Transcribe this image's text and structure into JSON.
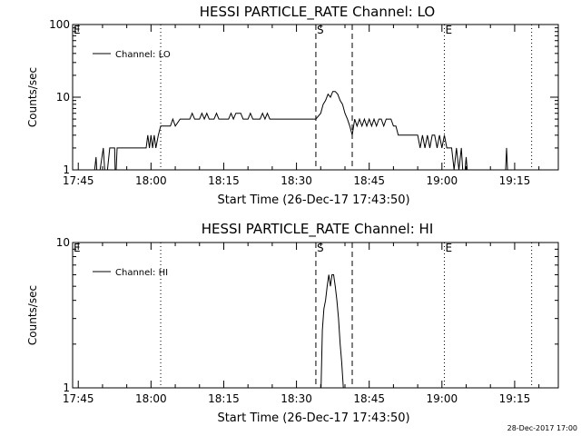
{
  "footer_stamp": "28-Dec-2017 17:00",
  "chart_data": [
    {
      "type": "line",
      "title": "HESSI PARTICLE_RATE Channel: LO",
      "xlabel": "Start Time (26-Dec-17 17:43:50)",
      "ylabel": "Counts/sec",
      "yscale": "log",
      "ylim": [
        1,
        100
      ],
      "xlim": [
        "17:43:50",
        "19:24:00"
      ],
      "x_ticks": [
        "17:45",
        "18:00",
        "18:15",
        "18:30",
        "18:45",
        "19:00",
        "19:15"
      ],
      "y_ticks": [
        {
          "value": 1,
          "label": "1"
        },
        {
          "value": 10,
          "label": "10"
        },
        {
          "value": 100,
          "label": "100"
        }
      ],
      "legend": {
        "position": "top-left",
        "entries": [
          "Channel: LO"
        ]
      },
      "markers": [
        {
          "time": "18:02:00",
          "style": "dotted",
          "label": ""
        },
        {
          "time": "18:34:00",
          "style": "dashed",
          "label": "S"
        },
        {
          "time": "18:41:30",
          "style": "dashed",
          "label": ""
        },
        {
          "time": "19:00:30",
          "style": "dotted",
          "label": "E"
        },
        {
          "time": "19:18:30",
          "style": "dotted",
          "label": ""
        }
      ],
      "edge_labels": [
        {
          "time": "17:43:50",
          "label": "E"
        }
      ],
      "series": [
        {
          "values": [
            [
              "17:48:00",
              0.6
            ],
            [
              "17:48:40",
              1.5
            ],
            [
              "17:49:00",
              0.6
            ],
            [
              "17:50:10",
              2.0
            ],
            [
              "17:50:40",
              0.6
            ],
            [
              "17:51:30",
              2.0
            ],
            [
              "17:52:30",
              2.0
            ],
            [
              "17:52:40",
              0.6
            ],
            [
              "17:53:00",
              2.0
            ],
            [
              "17:59:00",
              2.0
            ],
            [
              "17:59:20",
              3.0
            ],
            [
              "17:59:40",
              2.0
            ],
            [
              "18:00:00",
              3.0
            ],
            [
              "18:00:20",
              2.0
            ],
            [
              "18:00:40",
              3.0
            ],
            [
              "18:01:00",
              2.0
            ],
            [
              "18:01:30",
              3.0
            ],
            [
              "18:02:00",
              4.0
            ],
            [
              "18:04:00",
              4.0
            ],
            [
              "18:04:30",
              5.0
            ],
            [
              "18:05:00",
              4.0
            ],
            [
              "18:06:00",
              5.0
            ],
            [
              "18:08:00",
              5.0
            ],
            [
              "18:08:30",
              6.0
            ],
            [
              "18:09:00",
              5.0
            ],
            [
              "18:10:00",
              5.0
            ],
            [
              "18:10:30",
              6.0
            ],
            [
              "18:11:00",
              5.0
            ],
            [
              "18:11:30",
              6.0
            ],
            [
              "18:12:00",
              5.0
            ],
            [
              "18:13:00",
              5.0
            ],
            [
              "18:13:30",
              6.0
            ],
            [
              "18:14:00",
              5.0
            ],
            [
              "18:16:00",
              5.0
            ],
            [
              "18:16:30",
              6.0
            ],
            [
              "18:17:00",
              5.0
            ],
            [
              "18:17:30",
              6.0
            ],
            [
              "18:18:30",
              6.0
            ],
            [
              "18:19:00",
              5.0
            ],
            [
              "18:20:00",
              5.0
            ],
            [
              "18:20:30",
              6.0
            ],
            [
              "18:21:00",
              5.0
            ],
            [
              "18:22:30",
              5.0
            ],
            [
              "18:23:00",
              6.0
            ],
            [
              "18:23:30",
              5.0
            ],
            [
              "18:24:00",
              6.0
            ],
            [
              "18:24:30",
              5.0
            ],
            [
              "18:33:00",
              5.0
            ],
            [
              "18:34:00",
              5.0
            ],
            [
              "18:35:00",
              6.0
            ],
            [
              "18:35:30",
              8.0
            ],
            [
              "18:36:00",
              9.0
            ],
            [
              "18:36:30",
              11.0
            ],
            [
              "18:37:00",
              10.0
            ],
            [
              "18:37:30",
              12.0
            ],
            [
              "18:38:00",
              12.0
            ],
            [
              "18:38:30",
              11.0
            ],
            [
              "18:39:00",
              9.0
            ],
            [
              "18:39:30",
              8.0
            ],
            [
              "18:40:00",
              6.0
            ],
            [
              "18:40:30",
              5.0
            ],
            [
              "18:41:00",
              4.0
            ],
            [
              "18:41:30",
              3.0
            ],
            [
              "18:42:00",
              5.0
            ],
            [
              "18:42:30",
              4.0
            ],
            [
              "18:43:00",
              5.0
            ],
            [
              "18:43:30",
              4.0
            ],
            [
              "18:44:00",
              5.0
            ],
            [
              "18:44:30",
              4.0
            ],
            [
              "18:45:00",
              5.0
            ],
            [
              "18:45:30",
              4.0
            ],
            [
              "18:46:00",
              5.0
            ],
            [
              "18:46:30",
              4.0
            ],
            [
              "18:47:00",
              5.0
            ],
            [
              "18:47:30",
              5.0
            ],
            [
              "18:48:00",
              4.0
            ],
            [
              "18:48:30",
              5.0
            ],
            [
              "18:49:30",
              5.0
            ],
            [
              "18:50:00",
              4.0
            ],
            [
              "18:50:30",
              4.0
            ],
            [
              "18:51:00",
              3.0
            ],
            [
              "18:55:00",
              3.0
            ],
            [
              "18:55:30",
              2.0
            ],
            [
              "18:56:00",
              3.0
            ],
            [
              "18:56:30",
              2.0
            ],
            [
              "18:57:00",
              3.0
            ],
            [
              "18:57:30",
              2.0
            ],
            [
              "18:58:00",
              3.0
            ],
            [
              "18:58:30",
              3.0
            ],
            [
              "18:59:00",
              2.0
            ],
            [
              "18:59:30",
              3.0
            ],
            [
              "19:00:00",
              2.0
            ],
            [
              "19:00:30",
              3.0
            ],
            [
              "19:01:00",
              2.0
            ],
            [
              "19:02:00",
              2.0
            ],
            [
              "19:02:30",
              1.0
            ],
            [
              "19:03:00",
              2.0
            ],
            [
              "19:03:30",
              1.0
            ],
            [
              "19:04:00",
              2.0
            ],
            [
              "19:04:30",
              0.6
            ],
            [
              "19:05:00",
              1.5
            ],
            [
              "19:05:30",
              0.6
            ],
            [
              "19:13:00",
              0.6
            ],
            [
              "19:13:20",
              2.0
            ],
            [
              "19:13:40",
              0.6
            ]
          ]
        }
      ]
    },
    {
      "type": "line",
      "title": "HESSI PARTICLE_RATE Channel: HI",
      "xlabel": "Start Time (26-Dec-17 17:43:50)",
      "ylabel": "Counts/sec",
      "yscale": "log",
      "ylim": [
        1,
        10
      ],
      "xlim": [
        "17:43:50",
        "19:24:00"
      ],
      "x_ticks": [
        "17:45",
        "18:00",
        "18:15",
        "18:30",
        "18:45",
        "19:00",
        "19:15"
      ],
      "y_ticks": [
        {
          "value": 1,
          "label": "1"
        },
        {
          "value": 10,
          "label": "10"
        }
      ],
      "legend": {
        "position": "top-left",
        "entries": [
          "Channel: HI"
        ]
      },
      "markers": [
        {
          "time": "18:02:00",
          "style": "dotted",
          "label": ""
        },
        {
          "time": "18:34:00",
          "style": "dashed",
          "label": "S"
        },
        {
          "time": "18:41:30",
          "style": "dashed",
          "label": ""
        },
        {
          "time": "19:00:30",
          "style": "dotted",
          "label": "E"
        },
        {
          "time": "19:18:30",
          "style": "dotted",
          "label": ""
        }
      ],
      "edge_labels": [
        {
          "time": "17:43:50",
          "label": "E"
        }
      ],
      "series": [
        {
          "values": [
            [
              "18:35:00",
              0.8
            ],
            [
              "18:35:20",
              2.5
            ],
            [
              "18:35:40",
              3.5
            ],
            [
              "18:36:00",
              4.0
            ],
            [
              "18:36:20",
              5.0
            ],
            [
              "18:36:40",
              6.0
            ],
            [
              "18:37:00",
              5.0
            ],
            [
              "18:37:20",
              6.0
            ],
            [
              "18:37:40",
              6.0
            ],
            [
              "18:38:00",
              5.0
            ],
            [
              "18:38:20",
              4.0
            ],
            [
              "18:38:40",
              3.0
            ],
            [
              "18:39:00",
              2.0
            ],
            [
              "18:39:20",
              1.5
            ],
            [
              "18:39:40",
              1.0
            ],
            [
              "18:40:00",
              0.8
            ]
          ]
        }
      ]
    }
  ]
}
